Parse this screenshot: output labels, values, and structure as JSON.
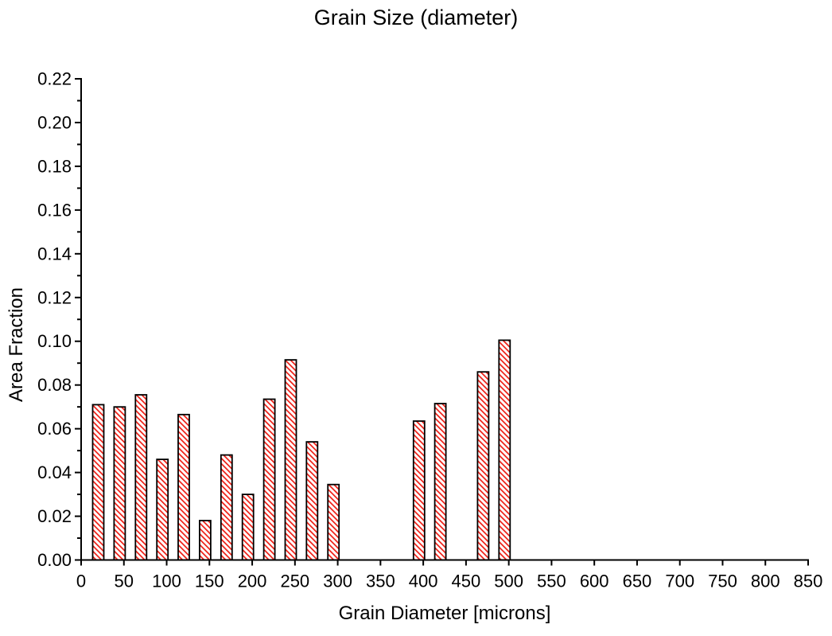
{
  "chart_data": {
    "type": "bar",
    "title": "Grain Size (diameter)",
    "xlabel": "Grain Diameter [microns]",
    "ylabel": "Area Fraction",
    "x": [
      20,
      45,
      70,
      95,
      120,
      145,
      170,
      195,
      220,
      245,
      270,
      295,
      395,
      420,
      470,
      495
    ],
    "values": [
      0.071,
      0.07,
      0.0755,
      0.046,
      0.0665,
      0.018,
      0.048,
      0.03,
      0.0735,
      0.0915,
      0.054,
      0.0345,
      0.0635,
      0.0715,
      0.086,
      0.1005
    ],
    "xlim": [
      0,
      850
    ],
    "ylim": [
      0,
      0.22
    ],
    "x_tick_step": 50,
    "y_tick_step": 0.02,
    "y_minor_tick_step": 0.01,
    "x_tick_labels": [
      "0",
      "50",
      "100",
      "150",
      "200",
      "250",
      "300",
      "350",
      "400",
      "450",
      "500",
      "550",
      "600",
      "650",
      "700",
      "750",
      "800",
      "850"
    ],
    "y_tick_labels": [
      "0.00",
      "0.02",
      "0.04",
      "0.06",
      "0.08",
      "0.10",
      "0.12",
      "0.14",
      "0.16",
      "0.18",
      "0.20",
      "0.22"
    ],
    "bar_width_microns": 13,
    "bar_fill": "#ffffff",
    "bar_hatch_color": "#ee1c12",
    "bar_edge_color": "#000000",
    "axis_color": "#000000",
    "text_color": "#000000",
    "background": "#ffffff",
    "grid": false,
    "legend": null
  }
}
